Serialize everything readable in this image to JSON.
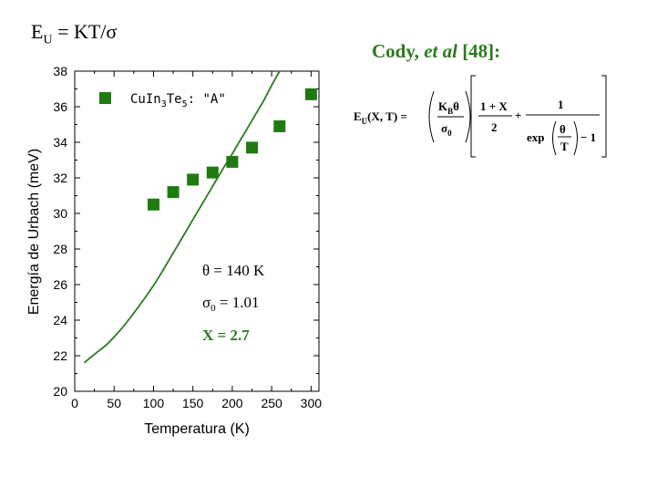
{
  "header": {
    "formula_main": "E",
    "formula_sub": "U",
    "formula_rest": " = KT/σ",
    "cody_name": "Cody, ",
    "cody_etal": "et al",
    "cody_ref": " [48]:"
  },
  "equation": {
    "lhs_main": "E",
    "lhs_sub": "U",
    "lhs_args": "(X, T) =",
    "kb": "K",
    "kb_sub": "B",
    "theta": "θ",
    "sigma0": "σ",
    "sigma0_sub": "0",
    "num1": "1 + X",
    "den1": "2",
    "plus": "+",
    "num2": "1",
    "exp": "exp",
    "theta2": "θ",
    "T": "T",
    "minus1": "− 1"
  },
  "colors": {
    "green": "#2d7a1f",
    "marker": "#1f7a12"
  },
  "chart_data": {
    "type": "scatter",
    "xlabel": "Temperatura  (K)",
    "ylabel": "Energía de Urbach  (meV)",
    "xlim": [
      0,
      310
    ],
    "ylim": [
      20,
      38
    ],
    "xticks": [
      0,
      50,
      100,
      150,
      200,
      250,
      300
    ],
    "yticks": [
      20,
      22,
      24,
      26,
      28,
      30,
      32,
      34,
      36,
      38
    ],
    "series": [
      {
        "name": "CuIn3Te5: \"A\"",
        "kind": "markers",
        "x": [
          100,
          125,
          150,
          175,
          200,
          225,
          260,
          300
        ],
        "y": [
          30.5,
          31.2,
          31.9,
          32.3,
          32.9,
          33.7,
          34.9,
          36.7
        ]
      },
      {
        "name": "",
        "kind": "line",
        "x": [
          12,
          20,
          30,
          40,
          50,
          60,
          70,
          80,
          90,
          100,
          110,
          120,
          130,
          140,
          150,
          160,
          170,
          180,
          190,
          200,
          210,
          220,
          230,
          240,
          250,
          260
        ],
        "y": [
          21.6,
          21.9,
          22.25,
          22.6,
          23.05,
          23.55,
          24.1,
          24.7,
          25.3,
          25.95,
          26.65,
          27.4,
          28.15,
          28.9,
          29.65,
          30.4,
          31.15,
          31.9,
          32.65,
          33.35,
          34.1,
          34.85,
          35.6,
          36.35,
          37.2,
          38.0
        ]
      }
    ],
    "legend": {
      "prefix": "CuIn",
      "sub1": "3",
      "mid": "Te",
      "sub2": "5",
      "suffix": ": \"A\""
    },
    "annotations": {
      "theta_line": "θ = 140 K",
      "sigma_main": "σ",
      "sigma_sub": "0",
      "sigma_rest": " = 1.01",
      "x_line": "X = 2.7"
    }
  }
}
